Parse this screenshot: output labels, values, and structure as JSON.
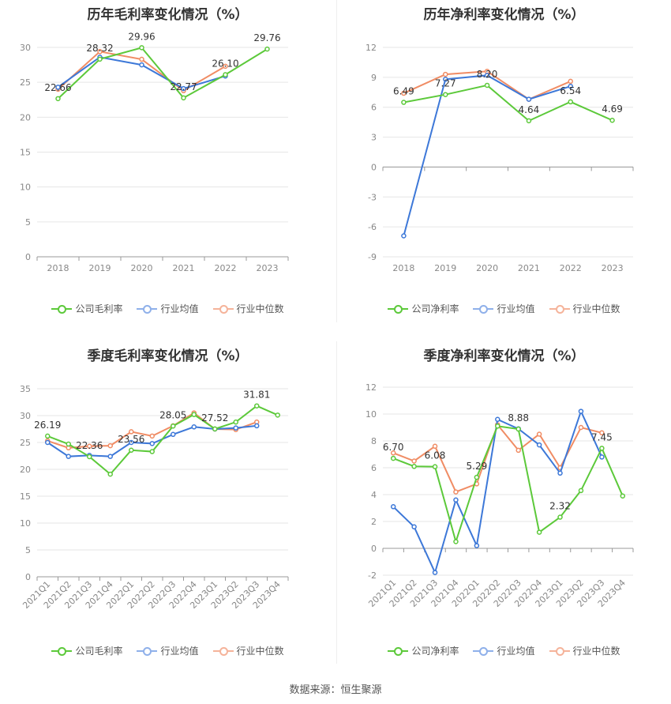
{
  "footer": {
    "source": "数据来源：恒生聚源"
  },
  "chart_data": [
    {
      "id": "annual-gross",
      "type": "line",
      "title": "历年毛利率变化情况（%）",
      "categories": [
        "2018",
        "2019",
        "2020",
        "2021",
        "2022",
        "2023"
      ],
      "ylim": [
        0,
        30
      ],
      "yticks": [
        0,
        5,
        10,
        15,
        20,
        25,
        30
      ],
      "series": [
        {
          "name": "公司毛利率",
          "color": "#5cc93a",
          "values": [
            22.66,
            28.32,
            29.96,
            22.77,
            26.1,
            29.76
          ]
        },
        {
          "name": "行业均值",
          "color": "#3d78d8",
          "values": [
            24.3,
            28.6,
            27.5,
            24.1,
            25.9,
            null
          ]
        },
        {
          "name": "行业中位数",
          "color": "#f08c64",
          "values": [
            24.0,
            29.4,
            28.3,
            23.8,
            27.3,
            null
          ]
        }
      ],
      "labels": [
        {
          "text": "22.66",
          "series": 0,
          "index": 0
        },
        {
          "text": "28.32",
          "series": 0,
          "index": 1
        },
        {
          "text": "29.96",
          "series": 0,
          "index": 2
        },
        {
          "text": "22.77",
          "series": 0,
          "index": 3
        },
        {
          "text": "26.10",
          "series": 0,
          "index": 4
        },
        {
          "text": "29.76",
          "series": 0,
          "index": 5
        }
      ]
    },
    {
      "id": "annual-net",
      "type": "line",
      "title": "历年净利率变化情况（%）",
      "categories": [
        "2018",
        "2019",
        "2020",
        "2021",
        "2022",
        "2023"
      ],
      "ylim": [
        -9,
        12
      ],
      "yticks": [
        -9,
        -6,
        -3,
        0,
        3,
        6,
        9,
        12
      ],
      "series": [
        {
          "name": "公司净利率",
          "color": "#5cc93a",
          "values": [
            6.49,
            7.27,
            8.2,
            4.64,
            6.54,
            4.69
          ]
        },
        {
          "name": "行业均值",
          "color": "#3d78d8",
          "values": [
            -6.9,
            8.8,
            9.2,
            6.8,
            8.1,
            null
          ]
        },
        {
          "name": "行业中位数",
          "color": "#f08c64",
          "values": [
            7.4,
            9.3,
            9.6,
            6.8,
            8.6,
            null
          ]
        }
      ],
      "labels": [
        {
          "text": "6.49",
          "series": 0,
          "index": 0
        },
        {
          "text": "7.27",
          "series": 0,
          "index": 1
        },
        {
          "text": "8.20",
          "series": 0,
          "index": 2
        },
        {
          "text": "4.64",
          "series": 0,
          "index": 3
        },
        {
          "text": "6.54",
          "series": 0,
          "index": 4
        },
        {
          "text": "4.69",
          "series": 0,
          "index": 5
        }
      ]
    },
    {
      "id": "quarter-gross",
      "type": "line",
      "title": "季度毛利率变化情况（%）",
      "categories": [
        "2021Q1",
        "2021Q2",
        "2021Q3",
        "2021Q4",
        "2022Q1",
        "2022Q2",
        "2022Q3",
        "2022Q4",
        "2023Q1",
        "2023Q2",
        "2023Q3",
        "2023Q4"
      ],
      "ylim": [
        0,
        35
      ],
      "yticks": [
        0,
        5,
        10,
        15,
        20,
        25,
        30,
        35
      ],
      "series": [
        {
          "name": "公司毛利率",
          "color": "#5cc93a",
          "values": [
            26.19,
            24.7,
            22.36,
            19.1,
            23.56,
            23.3,
            28.05,
            30.2,
            27.52,
            28.8,
            31.81,
            30.1
          ]
        },
        {
          "name": "行业均值",
          "color": "#3d78d8",
          "values": [
            25.0,
            22.4,
            22.6,
            22.4,
            25.0,
            24.8,
            26.5,
            27.9,
            27.5,
            27.7,
            28.1,
            null
          ]
        },
        {
          "name": "行业中位数",
          "color": "#f08c64",
          "values": [
            25.3,
            24.0,
            24.3,
            24.4,
            27.0,
            26.2,
            28.1,
            30.5,
            27.5,
            27.4,
            28.8,
            null
          ]
        }
      ],
      "labels": [
        {
          "text": "26.19",
          "series": 0,
          "index": 0
        },
        {
          "text": "22.36",
          "series": 0,
          "index": 2
        },
        {
          "text": "23.56",
          "series": 0,
          "index": 4
        },
        {
          "text": "28.05",
          "series": 0,
          "index": 6
        },
        {
          "text": "27.52",
          "series": 0,
          "index": 8
        },
        {
          "text": "31.81",
          "series": 0,
          "index": 10
        }
      ]
    },
    {
      "id": "quarter-net",
      "type": "line",
      "title": "季度净利率变化情况（%）",
      "categories": [
        "2021Q1",
        "2021Q2",
        "2021Q3",
        "2021Q4",
        "2022Q1",
        "2022Q2",
        "2022Q3",
        "2022Q4",
        "2023Q1",
        "2023Q2",
        "2023Q3",
        "2023Q4"
      ],
      "ylim": [
        -2,
        12
      ],
      "yticks": [
        -2,
        0,
        2,
        4,
        6,
        8,
        10,
        12
      ],
      "series": [
        {
          "name": "公司净利率",
          "color": "#5cc93a",
          "values": [
            6.7,
            6.1,
            6.08,
            0.5,
            5.29,
            9.1,
            8.88,
            1.2,
            2.32,
            4.3,
            7.45,
            3.9
          ]
        },
        {
          "name": "行业均值",
          "color": "#3d78d8",
          "values": [
            3.1,
            1.6,
            -1.8,
            3.6,
            0.2,
            9.6,
            8.9,
            7.7,
            5.6,
            10.2,
            6.8,
            null
          ]
        },
        {
          "name": "行业中位数",
          "color": "#f08c64",
          "values": [
            7.1,
            6.5,
            7.6,
            4.2,
            4.8,
            9.2,
            7.3,
            8.5,
            6.0,
            9.0,
            8.6,
            null
          ]
        }
      ],
      "labels": [
        {
          "text": "6.70",
          "series": 0,
          "index": 0
        },
        {
          "text": "6.08",
          "series": 0,
          "index": 2
        },
        {
          "text": "5.29",
          "series": 0,
          "index": 4
        },
        {
          "text": "8.88",
          "series": 0,
          "index": 6
        },
        {
          "text": "2.32",
          "series": 0,
          "index": 8
        },
        {
          "text": "7.45",
          "series": 0,
          "index": 10
        }
      ]
    }
  ]
}
